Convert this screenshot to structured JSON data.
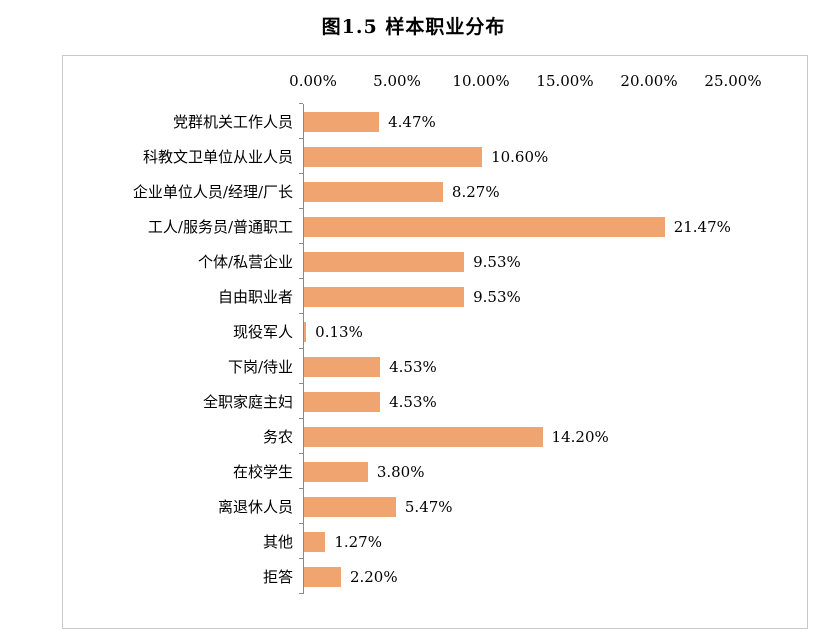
{
  "title": "图1.5 样本职业分布",
  "chart_data": {
    "type": "bar",
    "orientation": "horizontal",
    "title": "图1.5 样本职业分布",
    "categories": [
      "党群机关工作人员",
      "科教文卫单位从业人员",
      "企业单位人员/经理/厂长",
      "工人/服务员/普通职工",
      "个体/私营企业",
      "自由职业者",
      "现役军人",
      "下岗/待业",
      "全职家庭主妇",
      "务农",
      "在校学生",
      "离退休人员",
      "其他",
      "拒答"
    ],
    "values": [
      4.47,
      10.6,
      8.27,
      21.47,
      9.53,
      9.53,
      0.13,
      4.53,
      4.53,
      14.2,
      3.8,
      5.47,
      1.27,
      2.2
    ],
    "value_labels": [
      "4.47%",
      "10.60%",
      "8.27%",
      "21.47%",
      "9.53%",
      "9.53%",
      "0.13%",
      "4.53%",
      "4.53%",
      "14.20%",
      "3.80%",
      "5.47%",
      "1.27%",
      "2.20%"
    ],
    "x_ticks": [
      "0.00%",
      "5.00%",
      "10.00%",
      "15.00%",
      "20.00%",
      "25.00%"
    ],
    "x_tick_values": [
      0,
      5,
      10,
      15,
      20,
      25
    ],
    "xlim": [
      0,
      25
    ],
    "xlabel": "",
    "ylabel": "",
    "grid": false,
    "legend": false,
    "bar_color": "#f0a470",
    "axis_color": "#8a8a8a",
    "border_color": "#c9c9c9"
  }
}
